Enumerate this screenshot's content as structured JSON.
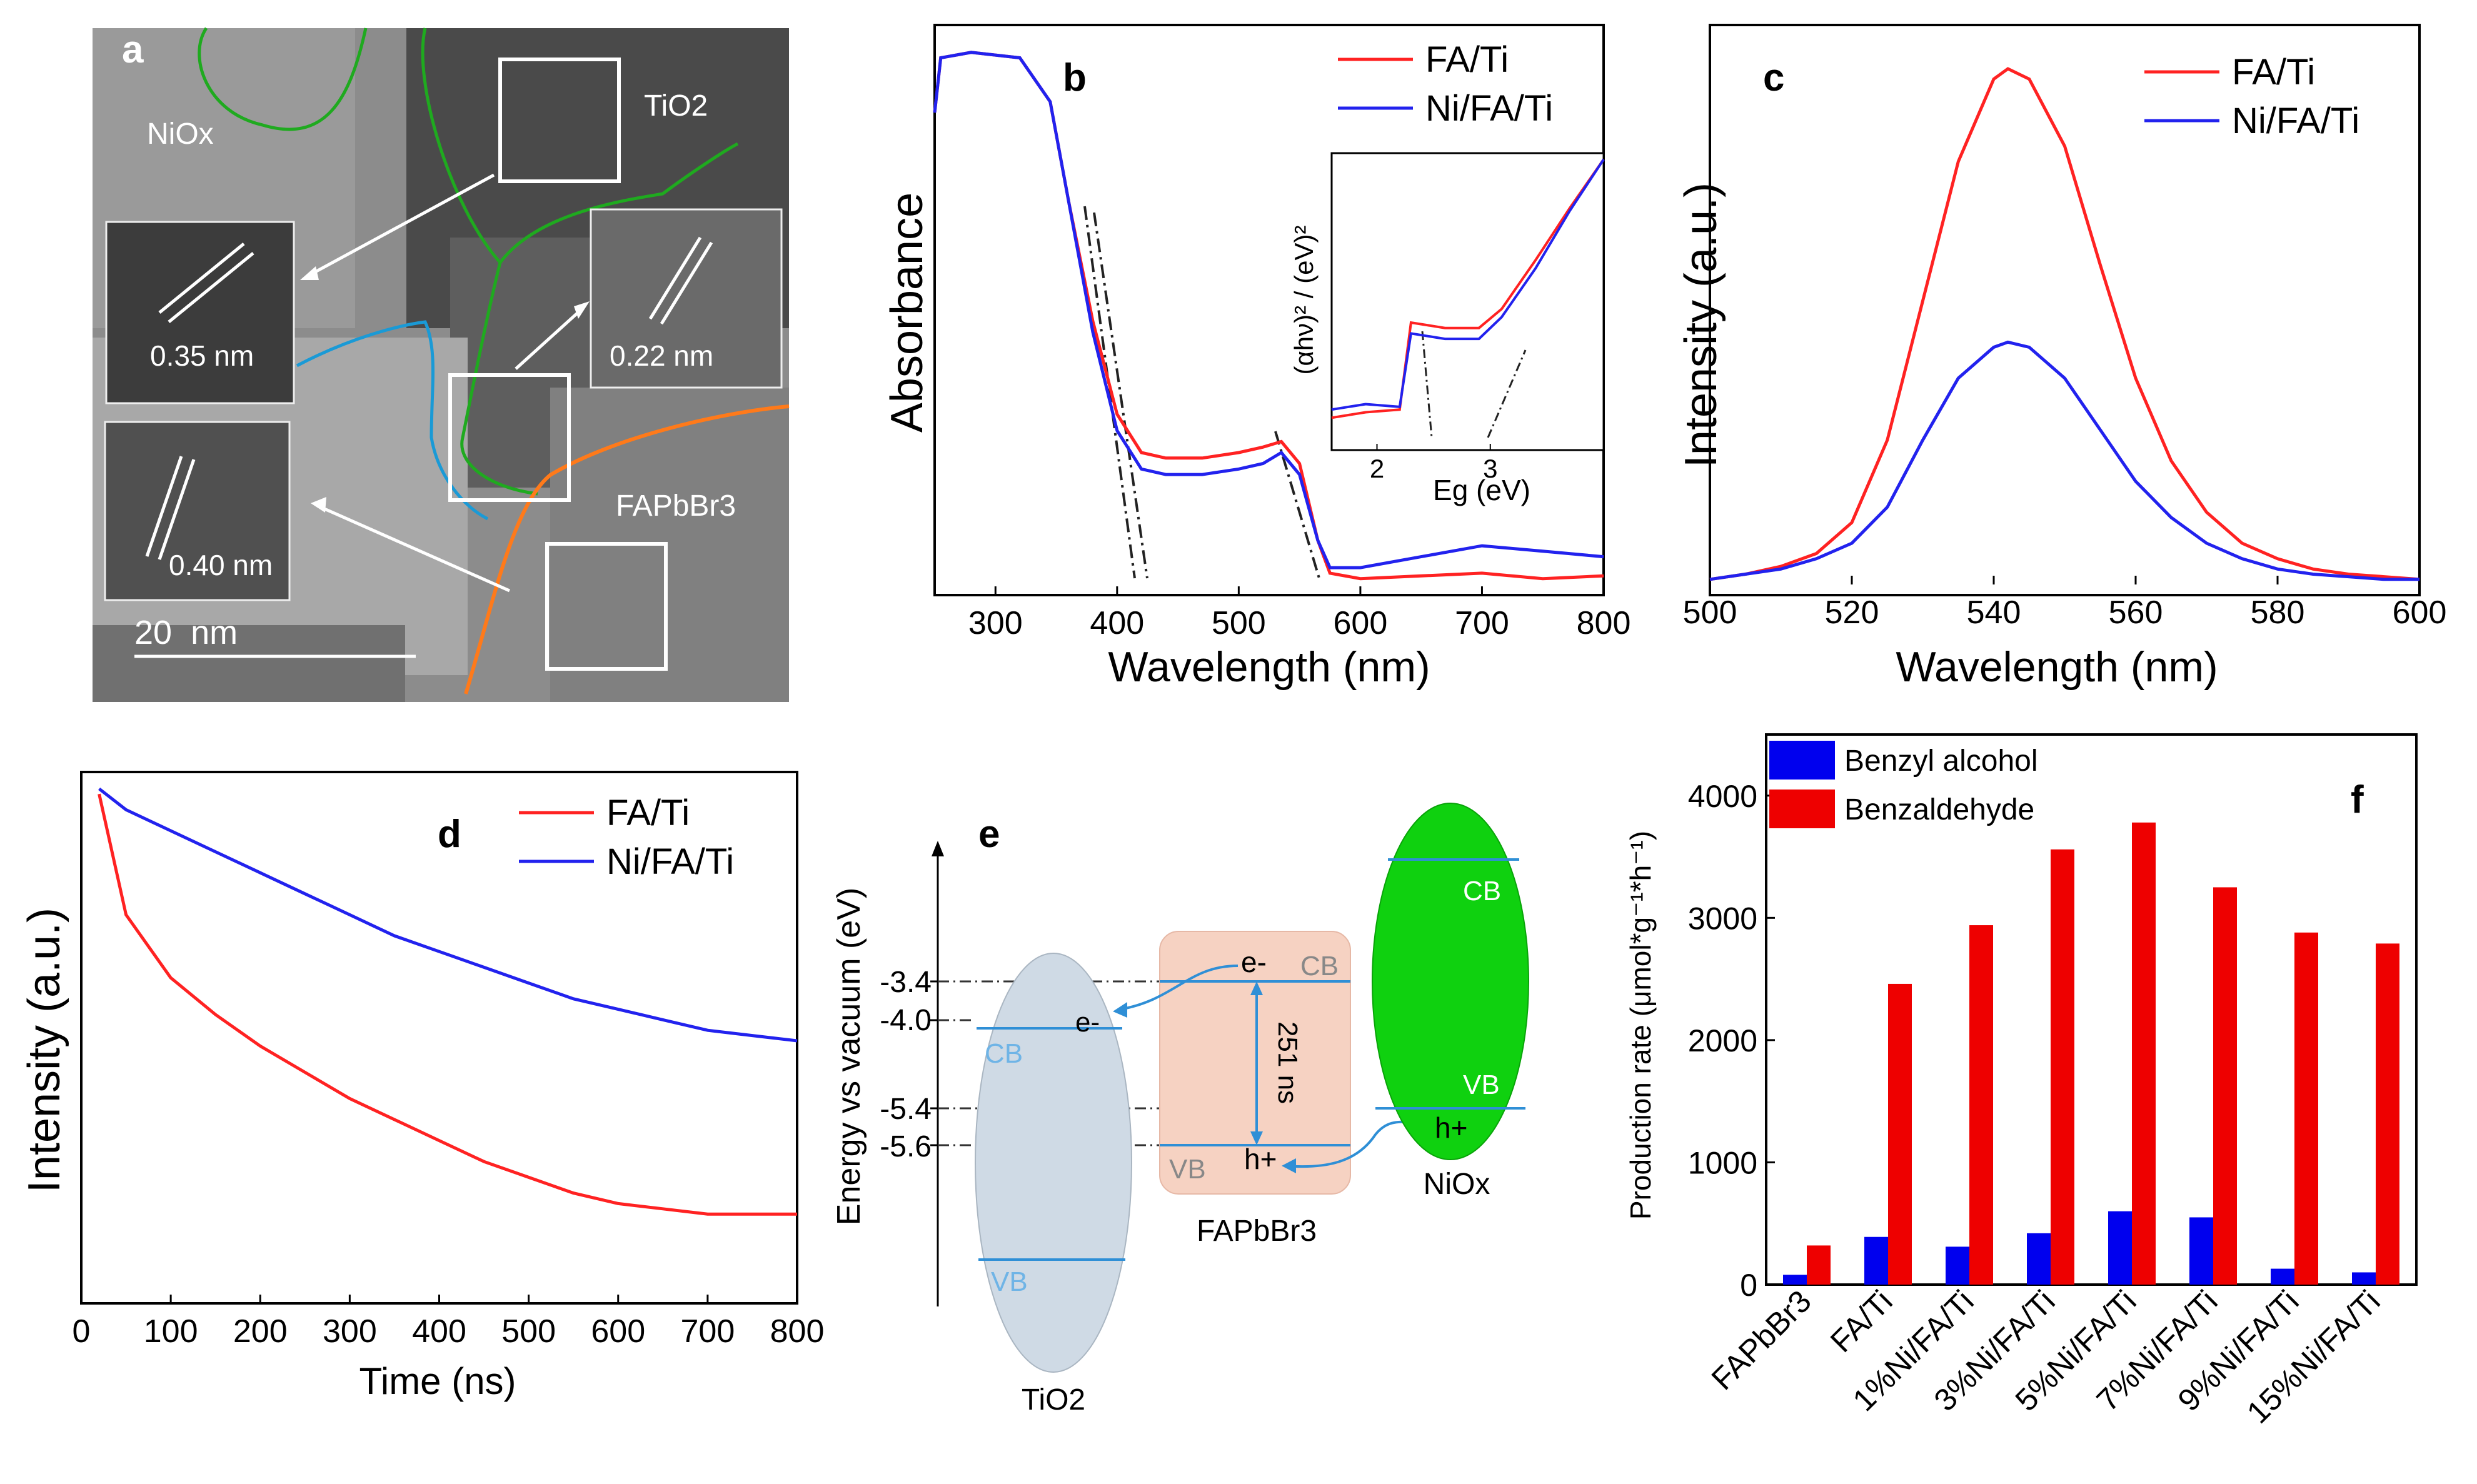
{
  "panels": {
    "a": {
      "letter": "a",
      "labels": [
        "NiOx",
        "TiO2",
        "FAPbBr3"
      ],
      "spacings": [
        "0.35 nm",
        "0.22 nm",
        "0.40 nm"
      ],
      "scale_bar": "20  nm"
    },
    "e": {
      "letter": "e",
      "ylabel": "Energy vs vacuum (eV)",
      "levels": [
        "-3.4",
        "-4.0",
        "-5.4",
        "-5.6"
      ],
      "materials": [
        "TiO2",
        "FAPbBr3",
        "NiOx"
      ],
      "band_labels": {
        "cb": "CB",
        "vb": "VB"
      },
      "carriers": {
        "electron": "e-",
        "hole": "h+"
      },
      "lifetime": "251 ns",
      "colors": {
        "tio2": "#cfdae5",
        "fapbbr3": "#f6d2c2",
        "niox": "#0fd10f",
        "band_line": "#2f8fd6"
      }
    }
  },
  "chart_data": [
    {
      "panel": "b",
      "type": "line",
      "xlabel": "Wavelength (nm)",
      "ylabel": "Absorbance",
      "xlim": [
        250,
        800
      ],
      "xticks": [
        300,
        400,
        500,
        600,
        700,
        800
      ],
      "ylim": [
        0,
        1
      ],
      "legend_position": "top-right",
      "series": [
        {
          "name": "FA/Ti",
          "color": "#ff2222",
          "x": [
            250,
            255,
            280,
            320,
            345,
            360,
            380,
            400,
            420,
            440,
            470,
            500,
            520,
            535,
            550,
            565,
            575,
            600,
            650,
            700,
            750,
            800
          ],
          "y": [
            0.88,
            0.98,
            0.99,
            0.98,
            0.9,
            0.72,
            0.5,
            0.33,
            0.26,
            0.25,
            0.25,
            0.26,
            0.27,
            0.28,
            0.24,
            0.1,
            0.04,
            0.03,
            0.035,
            0.04,
            0.03,
            0.035
          ]
        },
        {
          "name": "Ni/FA/Ti",
          "color": "#2222ee",
          "x": [
            250,
            255,
            280,
            320,
            345,
            360,
            380,
            400,
            420,
            440,
            470,
            500,
            520,
            535,
            550,
            565,
            575,
            600,
            650,
            700,
            750,
            800
          ],
          "y": [
            0.88,
            0.98,
            0.99,
            0.98,
            0.9,
            0.72,
            0.48,
            0.3,
            0.23,
            0.22,
            0.22,
            0.23,
            0.24,
            0.26,
            0.22,
            0.1,
            0.05,
            0.05,
            0.07,
            0.09,
            0.08,
            0.07
          ]
        }
      ],
      "inset": {
        "xlabel": "Eg (eV)",
        "ylabel": "(αhν)² / (eV)²",
        "xlim": [
          1.6,
          4.0
        ],
        "xticks": [
          2,
          3
        ],
        "series": [
          {
            "name": "FA/Ti",
            "color": "#ff2222",
            "x": [
              1.6,
              1.9,
              2.2,
              2.3,
              2.6,
              2.9,
              3.1,
              3.4,
              3.7,
              4.0
            ],
            "y": [
              0.05,
              0.07,
              0.08,
              0.4,
              0.38,
              0.38,
              0.45,
              0.63,
              0.82,
              1.0
            ]
          },
          {
            "name": "Ni/FA/Ti",
            "color": "#2222ee",
            "x": [
              1.6,
              1.9,
              2.2,
              2.3,
              2.6,
              2.9,
              3.1,
              3.4,
              3.7,
              4.0
            ],
            "y": [
              0.08,
              0.1,
              0.09,
              0.36,
              0.34,
              0.34,
              0.42,
              0.6,
              0.81,
              1.0
            ]
          }
        ]
      }
    },
    {
      "panel": "c",
      "type": "line",
      "xlabel": "Wavelength (nm)",
      "ylabel": "Intensity (a.u.)",
      "xlim": [
        500,
        600
      ],
      "xticks": [
        500,
        520,
        540,
        560,
        580,
        600
      ],
      "ylim": [
        0,
        1
      ],
      "legend_position": "top-right",
      "series": [
        {
          "name": "FA/Ti",
          "color": "#ff2222",
          "x": [
            500,
            505,
            510,
            515,
            520,
            525,
            530,
            535,
            540,
            542,
            545,
            550,
            555,
            560,
            565,
            570,
            575,
            580,
            585,
            590,
            595,
            600
          ],
          "y": [
            0.01,
            0.02,
            0.035,
            0.06,
            0.12,
            0.28,
            0.55,
            0.82,
            0.98,
            1.0,
            0.98,
            0.85,
            0.62,
            0.4,
            0.24,
            0.14,
            0.08,
            0.05,
            0.03,
            0.02,
            0.015,
            0.01
          ]
        },
        {
          "name": "Ni/FA/Ti",
          "color": "#2222ee",
          "x": [
            500,
            505,
            510,
            515,
            520,
            525,
            530,
            535,
            540,
            542,
            545,
            550,
            555,
            560,
            565,
            570,
            575,
            580,
            585,
            590,
            595,
            600
          ],
          "y": [
            0.01,
            0.02,
            0.03,
            0.05,
            0.08,
            0.15,
            0.28,
            0.4,
            0.46,
            0.47,
            0.46,
            0.4,
            0.3,
            0.2,
            0.13,
            0.08,
            0.05,
            0.03,
            0.02,
            0.015,
            0.01,
            0.01
          ]
        }
      ]
    },
    {
      "panel": "d",
      "type": "line",
      "xlabel": "Time (ns)",
      "ylabel": "Intensity (a.u.)",
      "xlim": [
        0,
        800
      ],
      "xticks": [
        0,
        100,
        200,
        300,
        400,
        500,
        600,
        700,
        800
      ],
      "ylim": [
        0,
        1
      ],
      "legend_position": "top-right",
      "series": [
        {
          "name": "FA/Ti",
          "color": "#ff2222",
          "x": [
            20,
            50,
            100,
            150,
            200,
            250,
            300,
            350,
            400,
            450,
            500,
            550,
            600,
            650,
            700,
            750,
            800
          ],
          "y": [
            0.97,
            0.74,
            0.62,
            0.55,
            0.49,
            0.44,
            0.39,
            0.35,
            0.31,
            0.27,
            0.24,
            0.21,
            0.19,
            0.18,
            0.17,
            0.17,
            0.17
          ]
        },
        {
          "name": "Ni/FA/Ti",
          "color": "#2222ee",
          "x": [
            20,
            50,
            100,
            150,
            200,
            250,
            300,
            350,
            400,
            450,
            500,
            550,
            600,
            650,
            700,
            750,
            800
          ],
          "y": [
            0.98,
            0.94,
            0.9,
            0.86,
            0.82,
            0.78,
            0.74,
            0.7,
            0.67,
            0.64,
            0.61,
            0.58,
            0.56,
            0.54,
            0.52,
            0.51,
            0.5
          ]
        }
      ]
    },
    {
      "panel": "f",
      "type": "bar",
      "ylabel": "Production rate (μmol*g⁻¹*h⁻¹)",
      "ylim": [
        0,
        4500
      ],
      "yticks": [
        0,
        1000,
        2000,
        3000,
        4000
      ],
      "legend_position": "top-left",
      "categories": [
        "FAPbBr3",
        "FA/Ti",
        "1%Ni/FA/Ti",
        "3%Ni/FA/Ti",
        "5%Ni/FA/Ti",
        "7%Ni/FA/Ti",
        "9%Ni/FA/Ti",
        "15%Ni/FA/Ti"
      ],
      "series": [
        {
          "name": "Benzyl alcohol",
          "color": "#0000ee",
          "values": [
            80,
            390,
            310,
            420,
            600,
            550,
            130,
            100
          ]
        },
        {
          "name": "Benzaldehyde",
          "color": "#ee0000",
          "values": [
            320,
            2460,
            2940,
            3560,
            3780,
            3250,
            2880,
            2790
          ]
        }
      ]
    }
  ]
}
